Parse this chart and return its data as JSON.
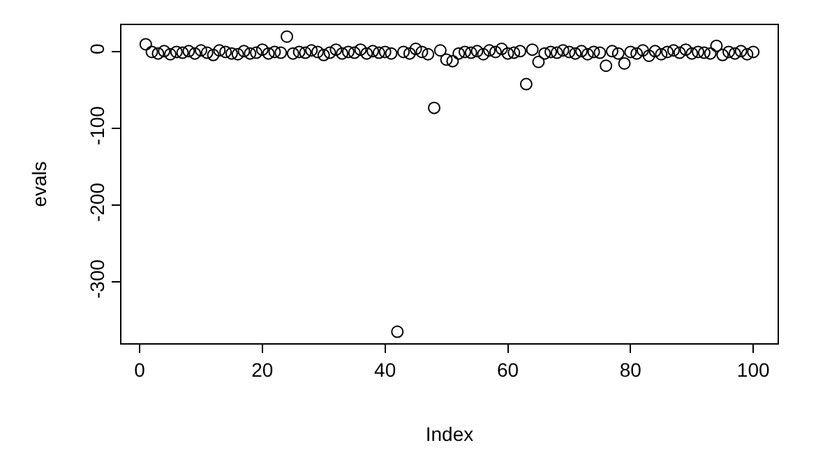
{
  "chart_data": {
    "type": "scatter",
    "xlabel": "Index",
    "ylabel": "evals",
    "x": [
      1,
      2,
      3,
      4,
      5,
      6,
      7,
      8,
      9,
      10,
      11,
      12,
      13,
      14,
      15,
      16,
      17,
      18,
      19,
      20,
      21,
      22,
      23,
      24,
      25,
      26,
      27,
      28,
      29,
      30,
      31,
      32,
      33,
      34,
      35,
      36,
      37,
      38,
      39,
      40,
      41,
      42,
      43,
      44,
      45,
      46,
      47,
      48,
      49,
      50,
      51,
      52,
      53,
      54,
      55,
      56,
      57,
      58,
      59,
      60,
      61,
      62,
      63,
      64,
      65,
      66,
      67,
      68,
      69,
      70,
      71,
      72,
      73,
      74,
      75,
      76,
      77,
      78,
      79,
      80,
      81,
      82,
      83,
      84,
      85,
      86,
      87,
      88,
      89,
      90,
      91,
      92,
      93,
      94,
      95,
      96,
      97,
      98,
      99,
      100
    ],
    "series": [
      {
        "color": "#000000",
        "values": [
          10,
          0,
          -2,
          1,
          -3,
          0,
          -1,
          1,
          -2,
          2,
          -1,
          -4,
          2,
          0,
          -2,
          -3,
          1,
          -2,
          -1,
          3,
          -2,
          0,
          -1,
          20,
          -2,
          0,
          -1,
          2,
          0,
          -4,
          -1,
          3,
          -2,
          0,
          -1,
          3,
          -2,
          1,
          -1,
          0,
          -2,
          -365,
          0,
          -2,
          4,
          0,
          -3,
          -73,
          2,
          -10,
          -12,
          -2,
          0,
          -1,
          1,
          -3,
          2,
          0,
          4,
          -2,
          -1,
          1,
          -42,
          3,
          -13,
          -2,
          0,
          -1,
          2,
          0,
          -2,
          1,
          -3,
          0,
          -1,
          -18,
          1,
          -2,
          -15,
          0,
          -2,
          2,
          -5,
          1,
          -3,
          0,
          2,
          -1,
          3,
          -2,
          0,
          -1,
          -2,
          8,
          -4,
          0,
          -2,
          1,
          -3,
          0
        ]
      }
    ],
    "xlim": [
      -2.96,
      103.96
    ],
    "ylim": [
      -380,
      35
    ],
    "xticks": [
      0,
      20,
      40,
      60,
      80,
      100
    ],
    "yticks": [
      0,
      -100,
      -200,
      -300
    ],
    "marker": "circle",
    "grid": false
  }
}
